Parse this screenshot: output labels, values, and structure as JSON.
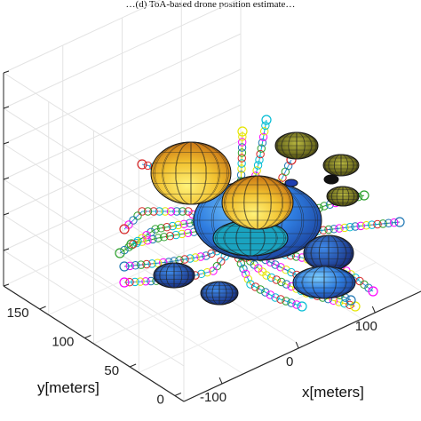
{
  "caption_fragment": "…(d) ToA-based drone position estimate…",
  "chart_data": {
    "type": "scatter",
    "title": "",
    "xlabel": "x[meters]",
    "ylabel": "y[meters]",
    "zlabel": "",
    "x_ticks": [
      "-100",
      "0",
      "100"
    ],
    "y_ticks": [
      "0",
      "50",
      "100",
      "150"
    ],
    "xlim": [
      -150,
      160
    ],
    "ylim": [
      -10,
      190
    ],
    "grid": true,
    "colors": {
      "ellipsoid_large": "#2f7de0",
      "ellipsoid_yellow": "#f2c230",
      "ellipsoid_dark": "#1f3fb0",
      "ellipsoid_olive": "#6b6a10",
      "marker_palette": [
        "#d62728",
        "#2ca02c",
        "#1f77b4",
        "#ff00ff",
        "#e5e500",
        "#00bcd4"
      ]
    }
  }
}
